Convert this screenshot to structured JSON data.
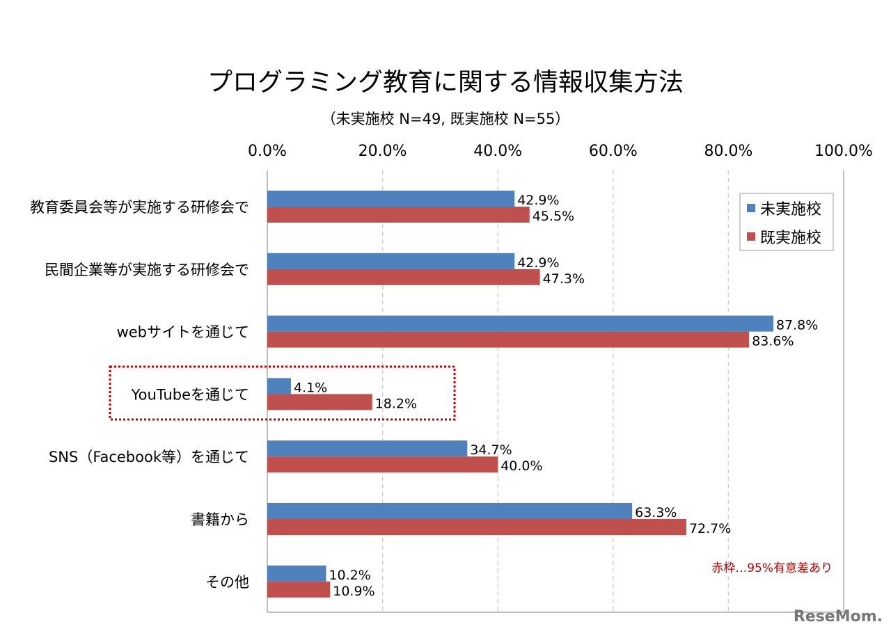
{
  "chart_data": {
    "type": "bar",
    "orientation": "horizontal",
    "title": "プログラミング教育に関する情報収集方法",
    "subtitle": "（未実施校  N=49, 既実施校  N=55）",
    "categories": [
      "教育委員会等が実施する研修会で",
      "民間企業等が実施する研修会で",
      "webサイトを通じて",
      "YouTubeを通じて",
      "SNS（Facebook等）を通じて",
      "書籍から",
      "その他"
    ],
    "series": [
      {
        "name": "未実施校",
        "color": "#4f81bd",
        "values": [
          42.9,
          42.9,
          87.8,
          4.1,
          34.7,
          63.3,
          10.2
        ],
        "labels": [
          "42.9%",
          "42.9%",
          "87.8%",
          "4.1%",
          "34.7%",
          "63.3%",
          "10.2%"
        ]
      },
      {
        "name": "既実施校",
        "color": "#c0504d",
        "values": [
          45.5,
          47.3,
          83.6,
          18.2,
          40.0,
          72.7,
          10.9
        ],
        "labels": [
          "45.5%",
          "47.3%",
          "83.6%",
          "18.2%",
          "40.0%",
          "72.7%",
          "10.9%"
        ]
      }
    ],
    "xlim": [
      0,
      100
    ],
    "ticks": [
      0,
      20,
      40,
      60,
      80,
      100
    ],
    "tick_labels": [
      "0.0%",
      "20.0%",
      "40.0%",
      "60.0%",
      "80.0%",
      "100.0%"
    ],
    "axis_position": "top",
    "grid": "vertical dashed",
    "legend_position": "top-right",
    "highlighted_category": "YouTubeを通じて",
    "highlight_color": "#c00000",
    "annotation": "赤枠…95%有意差あり"
  },
  "watermark": "ReseMom"
}
